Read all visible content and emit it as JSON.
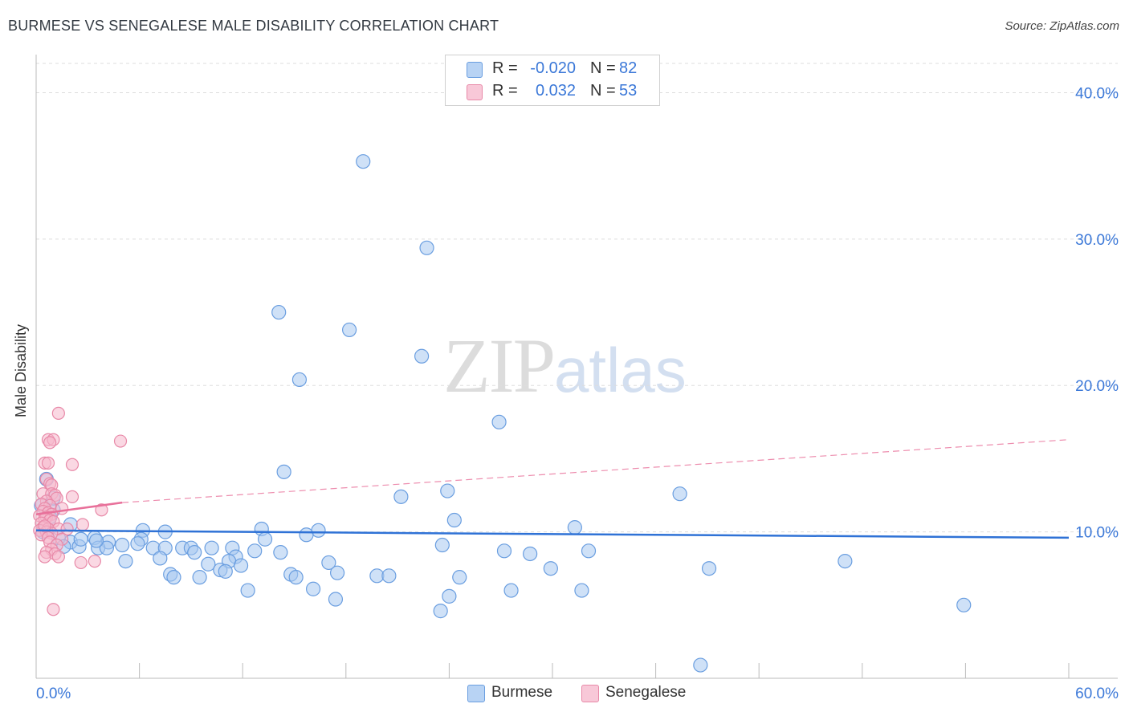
{
  "title": "BURMESE VS SENEGALESE MALE DISABILITY CORRELATION CHART",
  "source": "Source: ZipAtlas.com",
  "watermark": {
    "zip": "ZIP",
    "atlas": "atlas"
  },
  "legend": {
    "rows": [
      {
        "r_label": "R =",
        "r_value": "-0.020",
        "n_label": "N =",
        "n_value": "82"
      },
      {
        "r_label": "R =",
        "r_value": "0.032",
        "n_label": "N =",
        "n_value": "53"
      }
    ]
  },
  "bottom_legend": {
    "burmese": "Burmese",
    "senegalese": "Senegalese"
  },
  "colors": {
    "burmese_fill": "#a8c8f0",
    "burmese_stroke": "#6a9ee0",
    "burmese_line": "#2f72d6",
    "senegalese_fill": "#f5b8cc",
    "senegalese_stroke": "#e889a8",
    "senegalese_line": "#e8709a",
    "tick_label": "#3b78d8",
    "grid": "#dddddd"
  },
  "chart_data": {
    "type": "scatter",
    "title": "BURMESE VS SENEGALESE MALE DISABILITY CORRELATION CHART",
    "xlabel": "",
    "ylabel": "Male Disability",
    "xlim": [
      0,
      60
    ],
    "ylim": [
      0,
      42
    ],
    "x_tick_labels": [
      "0.0%",
      "60.0%"
    ],
    "y_ticks": [
      10,
      20,
      30,
      40
    ],
    "y_tick_labels": [
      "10.0%",
      "20.0%",
      "30.0%",
      "40.0%"
    ],
    "series": [
      {
        "name": "Burmese",
        "r": -0.02,
        "n": 82,
        "trend": {
          "x": [
            0,
            60
          ],
          "y": [
            10.1,
            9.6
          ],
          "style": "solid"
        },
        "points": [
          [
            19.0,
            35.3
          ],
          [
            22.7,
            29.4
          ],
          [
            14.1,
            25.0
          ],
          [
            18.2,
            23.8
          ],
          [
            22.4,
            22.0
          ],
          [
            15.3,
            20.4
          ],
          [
            26.9,
            17.5
          ],
          [
            14.4,
            14.1
          ],
          [
            23.9,
            12.8
          ],
          [
            37.4,
            12.6
          ],
          [
            21.2,
            12.4
          ],
          [
            24.3,
            10.8
          ],
          [
            31.3,
            10.3
          ],
          [
            16.4,
            10.1
          ],
          [
            13.1,
            10.2
          ],
          [
            6.2,
            10.1
          ],
          [
            7.5,
            10.0
          ],
          [
            15.7,
            9.8
          ],
          [
            13.3,
            9.5
          ],
          [
            6.1,
            9.5
          ],
          [
            3.4,
            9.6
          ],
          [
            4.2,
            9.3
          ],
          [
            5.0,
            9.1
          ],
          [
            5.9,
            9.2
          ],
          [
            2.0,
            9.3
          ],
          [
            2.5,
            9.0
          ],
          [
            3.6,
            8.9
          ],
          [
            4.1,
            8.9
          ],
          [
            6.8,
            8.9
          ],
          [
            7.5,
            8.9
          ],
          [
            8.5,
            8.9
          ],
          [
            9.0,
            8.9
          ],
          [
            10.2,
            8.9
          ],
          [
            11.4,
            8.9
          ],
          [
            23.6,
            9.1
          ],
          [
            27.2,
            8.7
          ],
          [
            28.7,
            8.5
          ],
          [
            32.1,
            8.7
          ],
          [
            12.7,
            8.7
          ],
          [
            14.2,
            8.6
          ],
          [
            9.2,
            8.6
          ],
          [
            11.6,
            8.3
          ],
          [
            7.2,
            8.2
          ],
          [
            5.2,
            8.0
          ],
          [
            11.2,
            8.0
          ],
          [
            10.0,
            7.8
          ],
          [
            17.0,
            7.9
          ],
          [
            47.0,
            8.0
          ],
          [
            11.9,
            7.7
          ],
          [
            39.1,
            7.5
          ],
          [
            29.9,
            7.5
          ],
          [
            10.7,
            7.4
          ],
          [
            11.0,
            7.3
          ],
          [
            17.5,
            7.2
          ],
          [
            14.8,
            7.1
          ],
          [
            19.8,
            7.0
          ],
          [
            20.5,
            7.0
          ],
          [
            24.6,
            6.9
          ],
          [
            15.1,
            6.9
          ],
          [
            7.8,
            7.1
          ],
          [
            9.5,
            6.9
          ],
          [
            8.0,
            6.9
          ],
          [
            12.3,
            6.0
          ],
          [
            16.1,
            6.1
          ],
          [
            27.6,
            6.0
          ],
          [
            31.7,
            6.0
          ],
          [
            17.4,
            5.4
          ],
          [
            24.0,
            5.6
          ],
          [
            23.5,
            4.6
          ],
          [
            53.9,
            5.0
          ],
          [
            38.6,
            0.9
          ],
          [
            1.0,
            11.5
          ],
          [
            0.6,
            13.6
          ],
          [
            0.8,
            11.0
          ],
          [
            1.3,
            9.6
          ],
          [
            2.6,
            9.5
          ],
          [
            1.6,
            9.0
          ],
          [
            0.4,
            10.0
          ],
          [
            2.0,
            10.5
          ],
          [
            3.5,
            9.4
          ],
          [
            1.0,
            12.3
          ],
          [
            0.3,
            11.8
          ]
        ]
      },
      {
        "name": "Senegalese",
        "r": 0.032,
        "n": 53,
        "trend": {
          "x": [
            0,
            5
          ],
          "y": [
            11.2,
            12.0
          ],
          "style": "solid",
          "extended": {
            "x": [
              5,
              60
            ],
            "y": [
              12.0,
              16.3
            ],
            "style": "dashed"
          }
        },
        "points": [
          [
            1.3,
            18.1
          ],
          [
            0.7,
            16.3
          ],
          [
            1.0,
            16.3
          ],
          [
            0.8,
            16.1
          ],
          [
            4.9,
            16.2
          ],
          [
            0.5,
            14.7
          ],
          [
            0.7,
            14.7
          ],
          [
            2.1,
            14.6
          ],
          [
            0.6,
            13.6
          ],
          [
            0.8,
            13.3
          ],
          [
            0.9,
            13.2
          ],
          [
            0.4,
            12.6
          ],
          [
            0.9,
            12.6
          ],
          [
            1.1,
            12.5
          ],
          [
            2.1,
            12.4
          ],
          [
            1.2,
            12.3
          ],
          [
            0.6,
            12.1
          ],
          [
            0.3,
            11.9
          ],
          [
            0.8,
            11.8
          ],
          [
            0.5,
            11.6
          ],
          [
            1.5,
            11.6
          ],
          [
            3.8,
            11.5
          ],
          [
            0.4,
            11.4
          ],
          [
            0.7,
            11.3
          ],
          [
            0.9,
            11.2
          ],
          [
            0.2,
            11.1
          ],
          [
            0.6,
            11.0
          ],
          [
            0.5,
            10.9
          ],
          [
            0.8,
            10.8
          ],
          [
            1.0,
            10.7
          ],
          [
            0.3,
            10.6
          ],
          [
            2.7,
            10.5
          ],
          [
            0.4,
            10.3
          ],
          [
            0.7,
            10.2
          ],
          [
            1.3,
            10.2
          ],
          [
            1.8,
            10.2
          ],
          [
            0.2,
            10.1
          ],
          [
            0.6,
            10.0
          ],
          [
            0.9,
            9.9
          ],
          [
            0.3,
            9.8
          ],
          [
            0.7,
            9.6
          ],
          [
            1.5,
            9.5
          ],
          [
            0.8,
            9.3
          ],
          [
            1.2,
            9.1
          ],
          [
            0.9,
            8.8
          ],
          [
            0.6,
            8.6
          ],
          [
            1.1,
            8.5
          ],
          [
            0.5,
            8.3
          ],
          [
            1.3,
            8.3
          ],
          [
            3.4,
            8.0
          ],
          [
            2.6,
            7.9
          ],
          [
            1.0,
            4.7
          ],
          [
            0.5,
            10.4
          ]
        ]
      }
    ]
  }
}
